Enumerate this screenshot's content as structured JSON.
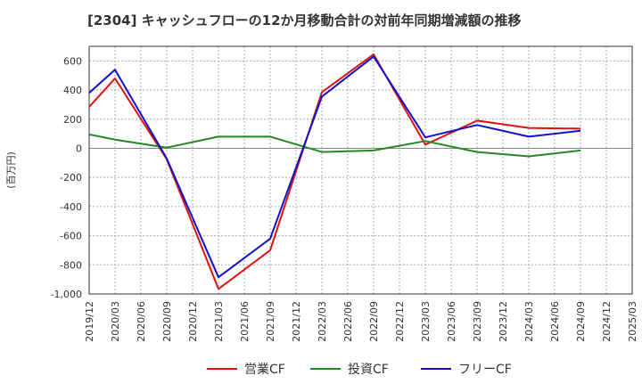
{
  "chart_data": {
    "type": "line",
    "title": "[2304]  キャッシュフローの12か月移動合計の対前年同期増減額の推移",
    "ylabel": "(百万円)",
    "xlabel": "",
    "ylim": [
      -1000,
      700
    ],
    "yticks": [
      -1000,
      -800,
      -600,
      -400,
      -200,
      0,
      200,
      400,
      600
    ],
    "ytick_labels": [
      "-1,000",
      "-800",
      "-600",
      "-400",
      "-200",
      "0",
      "200",
      "400",
      "600"
    ],
    "categories": [
      "2019/12",
      "2020/03",
      "2020/06",
      "2020/09",
      "2020/12",
      "2021/03",
      "2021/06",
      "2021/09",
      "2021/12",
      "2022/03",
      "2022/06",
      "2022/09",
      "2022/12",
      "2023/03",
      "2023/06",
      "2023/09",
      "2023/12",
      "2024/03",
      "2024/06",
      "2024/09",
      "2024/12",
      "2025/03"
    ],
    "series": [
      {
        "name": "営業CF",
        "color": "#dd1111",
        "values": [
          285,
          480,
          null,
          -75,
          null,
          -965,
          null,
          -700,
          null,
          385,
          null,
          645,
          null,
          25,
          null,
          190,
          null,
          140,
          null,
          135,
          null,
          null
        ]
      },
      {
        "name": "投資CF",
        "color": "#228822",
        "values": [
          95,
          60,
          null,
          5,
          null,
          80,
          null,
          80,
          null,
          -25,
          null,
          -15,
          null,
          50,
          null,
          -25,
          null,
          -55,
          null,
          -15,
          null,
          null
        ]
      },
      {
        "name": "フリーCF",
        "color": "#1111cc",
        "values": [
          380,
          540,
          null,
          -70,
          null,
          -885,
          null,
          -620,
          null,
          355,
          null,
          630,
          null,
          75,
          null,
          160,
          null,
          80,
          null,
          120,
          null,
          null
        ]
      }
    ],
    "grid": true,
    "legend_position": "bottom"
  }
}
